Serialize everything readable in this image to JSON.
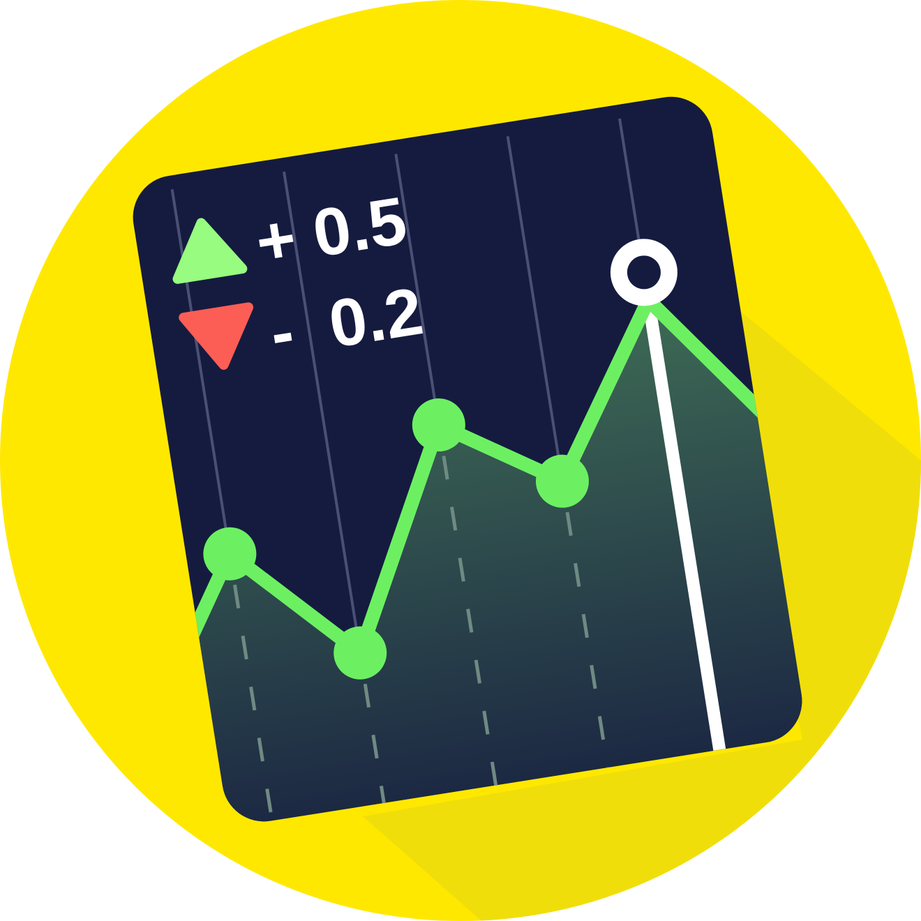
{
  "colors": {
    "background_circle": "#FFE800",
    "shadow": "#F0DE0B",
    "card": "#151B3F",
    "line": "#6CF062",
    "area_top": "#3E6B55",
    "area_bottom": "#1C2843",
    "up_arrow": "#97FC80",
    "down_arrow": "#FC5E55",
    "marker": "#FFFFFF",
    "grid": "#4A5074",
    "dash": "#6F8A83"
  },
  "indicators": {
    "up": {
      "icon": "triangle-up-icon",
      "label": "+ 0.5"
    },
    "down": {
      "icon": "triangle-down-icon",
      "label": "-  0.2"
    }
  },
  "chart_data": {
    "type": "line",
    "x": [
      0,
      1,
      2,
      3,
      4,
      5,
      6
    ],
    "values": [
      0.05,
      0.48,
      0.18,
      0.72,
      0.53,
      0.95,
      0.56
    ],
    "markers": [
      1,
      2,
      3,
      4
    ],
    "highlight_index": 5,
    "ylim": [
      0,
      1
    ]
  }
}
